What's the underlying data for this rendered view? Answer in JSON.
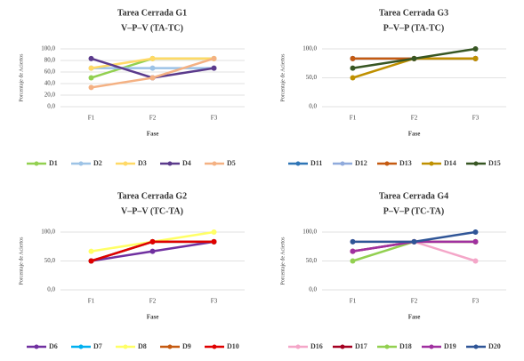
{
  "chart_data": [
    {
      "type": "line",
      "title": "Tarea Cerrada G1",
      "subtitle": "V–P–V (TA-TC)",
      "y_label": "Porcentaje de Aciertos",
      "x_label": "Fase",
      "categories": [
        "F1",
        "F2",
        "F3"
      ],
      "ylim": [
        0,
        100
      ],
      "yticks": [
        {
          "value": 0,
          "label": "0,0"
        },
        {
          "value": 20,
          "label": "20,0"
        },
        {
          "value": 40,
          "label": "40,0"
        },
        {
          "value": 60,
          "label": "60,0"
        },
        {
          "value": 80,
          "label": "80,0"
        },
        {
          "value": 100,
          "label": "100,0"
        }
      ],
      "grid": true,
      "series": [
        {
          "name": "D1",
          "color": "#92d050",
          "values": [
            50,
            83.3,
            83.3
          ]
        },
        {
          "name": "D2",
          "color": "#9dc3e6",
          "values": [
            66.7,
            66.7,
            66.7
          ]
        },
        {
          "name": "D3",
          "color": "#ffd966",
          "values": [
            66.7,
            83.3,
            83.3
          ]
        },
        {
          "name": "D4",
          "color": "#5b3a8c",
          "values": [
            83.3,
            50,
            66.7
          ]
        },
        {
          "name": "D5",
          "color": "#f4b183",
          "values": [
            33.3,
            50,
            83.3
          ]
        }
      ]
    },
    {
      "type": "line",
      "title": "Tarea Cerrada G3",
      "subtitle": "P–V–P (TA-TC)",
      "y_label": "Porcentaje de Aciertos",
      "x_label": "Fase",
      "categories": [
        "F1",
        "F2",
        "F3"
      ],
      "ylim": [
        0,
        100
      ],
      "yticks": [
        {
          "value": 0,
          "label": "0,0"
        },
        {
          "value": 50,
          "label": "50,0"
        },
        {
          "value": 100,
          "label": "100,0"
        }
      ],
      "grid": true,
      "series": [
        {
          "name": "D11",
          "color": "#2e75b6",
          "values": [
            83.3,
            83.3,
            83.3
          ]
        },
        {
          "name": "D12",
          "color": "#8faadc",
          "values": [
            83.3,
            83.3,
            83.3
          ]
        },
        {
          "name": "D13",
          "color": "#c55a11",
          "values": [
            83.3,
            83.3,
            83.3
          ]
        },
        {
          "name": "D14",
          "color": "#bf9000",
          "values": [
            50,
            83.3,
            83.3
          ]
        },
        {
          "name": "D15",
          "color": "#375623",
          "values": [
            66.7,
            83.3,
            100
          ]
        }
      ]
    },
    {
      "type": "line",
      "title": "Tarea Cerrada G2",
      "subtitle": "V–P–V (TC-TA)",
      "y_label": "Porcentaje de Aciertos",
      "x_label": "Fase",
      "categories": [
        "F1",
        "F2",
        "F3"
      ],
      "ylim": [
        0,
        100
      ],
      "yticks": [
        {
          "value": 0,
          "label": "0,0"
        },
        {
          "value": 50,
          "label": "50,0"
        },
        {
          "value": 100,
          "label": "100,0"
        }
      ],
      "grid": true,
      "series": [
        {
          "name": "D6",
          "color": "#7030a0",
          "values": [
            50,
            66.7,
            83.3
          ]
        },
        {
          "name": "D7",
          "color": "#00b0f0",
          "values": [
            50,
            83.3,
            83.3
          ]
        },
        {
          "name": "D8",
          "color": "#ffff66",
          "values": [
            66.7,
            83.3,
            100
          ]
        },
        {
          "name": "D9",
          "color": "#c55a11",
          "values": [
            50,
            83.3,
            83.3
          ]
        },
        {
          "name": "D10",
          "color": "#e00000",
          "values": [
            50,
            83.3,
            83.3
          ]
        }
      ]
    },
    {
      "type": "line",
      "title": "Tarea Cerrada G4",
      "subtitle": "P–V–P (TC-TA)",
      "y_label": "Porcentaje de Aciertos",
      "x_label": "Fase",
      "categories": [
        "F1",
        "F2",
        "F3"
      ],
      "ylim": [
        0,
        100
      ],
      "yticks": [
        {
          "value": 0,
          "label": "0,0"
        },
        {
          "value": 50,
          "label": "50,0"
        },
        {
          "value": 100,
          "label": "100,0"
        }
      ],
      "grid": true,
      "series": [
        {
          "name": "D16",
          "color": "#f4a6c8",
          "values": [
            83.3,
            83.3,
            50
          ]
        },
        {
          "name": "D17",
          "color": "#a50021",
          "values": [
            66.7,
            83.3,
            83.3
          ]
        },
        {
          "name": "D18",
          "color": "#92d050",
          "values": [
            50,
            83.3,
            83.3
          ]
        },
        {
          "name": "D19",
          "color": "#a030a0",
          "values": [
            66.7,
            83.3,
            83.3
          ]
        },
        {
          "name": "D20",
          "color": "#2f5597",
          "values": [
            83.3,
            83.3,
            100
          ]
        }
      ]
    }
  ]
}
